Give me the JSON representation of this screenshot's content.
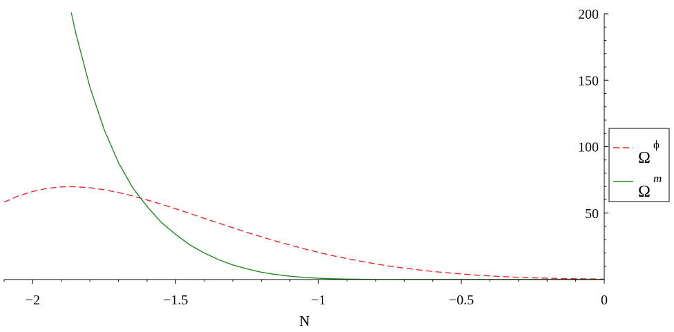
{
  "chart_data": {
    "type": "line",
    "xlabel": "N",
    "ylabel": "",
    "xlim": [
      -2.1,
      0
    ],
    "ylim": [
      0,
      200
    ],
    "x_ticks": [
      -2,
      -1.5,
      -1,
      -0.5,
      0
    ],
    "x_tick_labels": [
      "−2",
      "−1.5",
      "−1",
      "−0.5",
      "0"
    ],
    "y_ticks": [
      50,
      100,
      150,
      200
    ],
    "y_tick_labels": [
      "50",
      "100",
      "150",
      "200"
    ],
    "legend_placement": "right",
    "series": [
      {
        "name": "Ω^φ",
        "legend_base": "Ω",
        "legend_sup": "ϕ",
        "color": "#e8262a",
        "style": "dashed",
        "x": [
          -2.1,
          -2.05,
          -2.0,
          -1.95,
          -1.9,
          -1.875,
          -1.85,
          -1.8,
          -1.75,
          -1.7,
          -1.65,
          -1.6,
          -1.55,
          -1.5,
          -1.45,
          -1.4,
          -1.35,
          -1.3,
          -1.25,
          -1.2,
          -1.15,
          -1.1,
          -1.05,
          -1.0,
          -0.95,
          -0.9,
          -0.85,
          -0.8,
          -0.75,
          -0.7,
          -0.65,
          -0.6,
          -0.55,
          -0.5,
          -0.45,
          -0.4,
          -0.35,
          -0.3,
          -0.25,
          -0.2,
          -0.15,
          -0.1,
          -0.05,
          0.0
        ],
        "y": [
          58.3,
          62.9,
          66.3,
          68.6,
          69.7,
          69.9,
          69.8,
          69.1,
          67.6,
          65.5,
          62.9,
          59.9,
          56.7,
          53.3,
          49.7,
          46.1,
          42.5,
          39.0,
          35.5,
          32.2,
          29.0,
          26.0,
          23.1,
          20.4,
          18.0,
          15.8,
          13.7,
          11.8,
          10.1,
          8.6,
          7.3,
          6.1,
          5.1,
          4.2,
          3.4,
          2.7,
          2.2,
          1.7,
          1.3,
          1.0,
          0.8,
          0.6,
          0.5,
          0.3
        ]
      },
      {
        "name": "Ω^m",
        "legend_base": "Ω",
        "legend_sup": "m",
        "color": "#1e8c1e",
        "style": "solid",
        "x": [
          -1.865,
          -1.85,
          -1.8,
          -1.75,
          -1.7,
          -1.65,
          -1.6,
          -1.55,
          -1.5,
          -1.45,
          -1.4,
          -1.35,
          -1.3,
          -1.25,
          -1.2,
          -1.15,
          -1.1,
          -1.05,
          -1.0,
          -0.95,
          -0.9,
          -0.85,
          -0.8,
          -0.75,
          -0.7,
          -0.6,
          -0.5,
          -0.4,
          -0.3,
          -0.2,
          -0.1,
          0.0
        ],
        "y": [
          201,
          186,
          145,
          113,
          88,
          69,
          55,
          43,
          34,
          26,
          20,
          15,
          11,
          8,
          5.5,
          3.8,
          2.5,
          1.6,
          1.0,
          0.6,
          0.35,
          0.2,
          0.1,
          0.05,
          0.02,
          0.0,
          0.0,
          0.0,
          0.0,
          0.0,
          0.0,
          0.0
        ]
      }
    ]
  }
}
